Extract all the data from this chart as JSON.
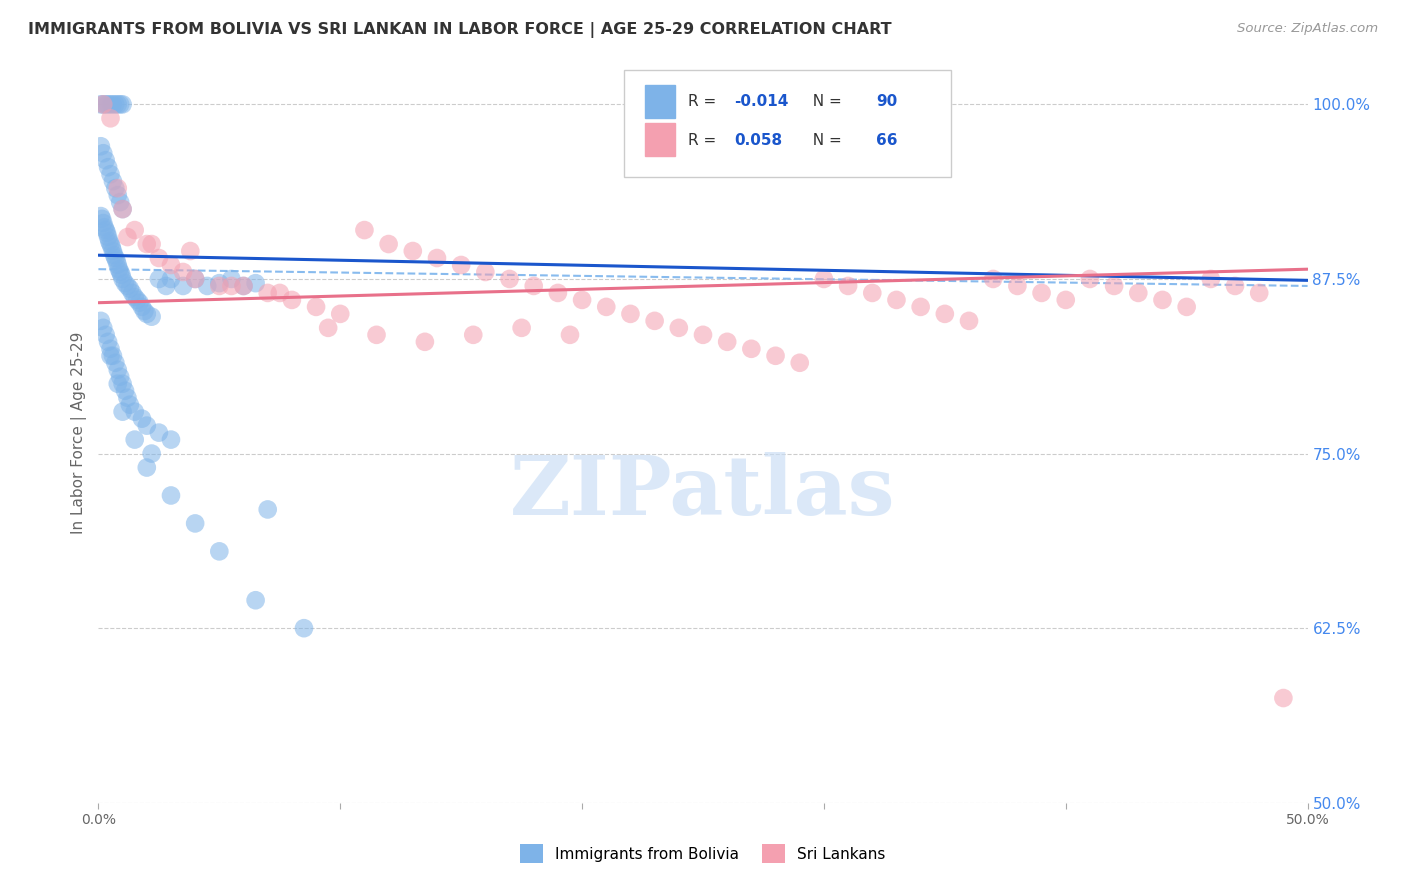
{
  "title": "IMMIGRANTS FROM BOLIVIA VS SRI LANKAN IN LABOR FORCE | AGE 25-29 CORRELATION CHART",
  "source": "Source: ZipAtlas.com",
  "ylabel": "In Labor Force | Age 25-29",
  "yticks": [
    50.0,
    62.5,
    75.0,
    87.5,
    100.0
  ],
  "ytick_labels": [
    "50.0%",
    "62.5%",
    "75.0%",
    "87.5%",
    "100.0%"
  ],
  "xlim": [
    0.0,
    50.0
  ],
  "ylim": [
    50.0,
    103.0
  ],
  "bolivia_R": -0.014,
  "bolivia_N": 90,
  "srilanka_R": 0.058,
  "srilanka_N": 66,
  "bolivia_color": "#7EB3E8",
  "srilanka_color": "#F4A0B0",
  "bolivia_line_color": "#1A56CC",
  "srilanka_line_color": "#E8708A",
  "bolivia_trend": [
    89.2,
    87.4
  ],
  "srilanka_trend": [
    85.8,
    88.2
  ],
  "dashed_trend": [
    88.2,
    87.0
  ],
  "bolivia_scatter_x": [
    0.1,
    0.2,
    0.3,
    0.4,
    0.5,
    0.6,
    0.7,
    0.8,
    0.9,
    1.0,
    0.1,
    0.2,
    0.3,
    0.4,
    0.5,
    0.6,
    0.7,
    0.8,
    0.9,
    1.0,
    0.1,
    0.15,
    0.2,
    0.25,
    0.3,
    0.35,
    0.4,
    0.45,
    0.5,
    0.55,
    0.6,
    0.65,
    0.7,
    0.75,
    0.8,
    0.85,
    0.9,
    0.95,
    1.0,
    1.1,
    1.2,
    1.3,
    1.4,
    1.5,
    1.6,
    1.7,
    1.8,
    1.9,
    2.0,
    2.2,
    2.5,
    2.8,
    3.0,
    3.5,
    4.0,
    4.5,
    5.0,
    5.5,
    6.0,
    6.5,
    0.1,
    0.2,
    0.3,
    0.4,
    0.5,
    0.6,
    0.7,
    0.8,
    0.9,
    1.0,
    1.1,
    1.2,
    1.3,
    1.5,
    1.8,
    2.0,
    2.5,
    3.0,
    7.0,
    2.2,
    0.5,
    0.8,
    1.0,
    1.5,
    2.0,
    3.0,
    4.0,
    5.0,
    6.5,
    8.5
  ],
  "bolivia_scatter_y": [
    100.0,
    100.0,
    100.0,
    100.0,
    100.0,
    100.0,
    100.0,
    100.0,
    100.0,
    100.0,
    97.0,
    96.5,
    96.0,
    95.5,
    95.0,
    94.5,
    94.0,
    93.5,
    93.0,
    92.5,
    92.0,
    91.8,
    91.5,
    91.2,
    91.0,
    90.8,
    90.5,
    90.2,
    90.0,
    89.8,
    89.5,
    89.2,
    89.0,
    88.8,
    88.5,
    88.2,
    88.0,
    87.8,
    87.5,
    87.2,
    87.0,
    86.8,
    86.5,
    86.2,
    86.0,
    85.8,
    85.5,
    85.2,
    85.0,
    84.8,
    87.5,
    87.0,
    87.5,
    87.0,
    87.5,
    87.0,
    87.2,
    87.5,
    87.0,
    87.2,
    84.5,
    84.0,
    83.5,
    83.0,
    82.5,
    82.0,
    81.5,
    81.0,
    80.5,
    80.0,
    79.5,
    79.0,
    78.5,
    78.0,
    77.5,
    77.0,
    76.5,
    76.0,
    71.0,
    75.0,
    82.0,
    80.0,
    78.0,
    76.0,
    74.0,
    72.0,
    70.0,
    68.0,
    64.5,
    62.5
  ],
  "srilanka_scatter_x": [
    0.2,
    0.5,
    0.8,
    1.0,
    1.5,
    2.0,
    2.5,
    3.0,
    3.5,
    4.0,
    5.0,
    6.0,
    7.0,
    8.0,
    9.0,
    10.0,
    11.0,
    12.0,
    13.0,
    14.0,
    15.0,
    16.0,
    17.0,
    18.0,
    19.0,
    20.0,
    21.0,
    22.0,
    23.0,
    24.0,
    25.0,
    26.0,
    27.0,
    28.0,
    29.0,
    30.0,
    31.0,
    32.0,
    33.0,
    34.0,
    35.0,
    36.0,
    37.0,
    38.0,
    39.0,
    40.0,
    41.0,
    42.0,
    43.0,
    44.0,
    45.0,
    46.0,
    47.0,
    48.0,
    49.0,
    1.2,
    2.2,
    3.8,
    5.5,
    7.5,
    9.5,
    11.5,
    13.5,
    15.5,
    17.5,
    19.5
  ],
  "srilanka_scatter_y": [
    100.0,
    99.0,
    94.0,
    92.5,
    91.0,
    90.0,
    89.0,
    88.5,
    88.0,
    87.5,
    87.0,
    87.0,
    86.5,
    86.0,
    85.5,
    85.0,
    91.0,
    90.0,
    89.5,
    89.0,
    88.5,
    88.0,
    87.5,
    87.0,
    86.5,
    86.0,
    85.5,
    85.0,
    84.5,
    84.0,
    83.5,
    83.0,
    82.5,
    82.0,
    81.5,
    87.5,
    87.0,
    86.5,
    86.0,
    85.5,
    85.0,
    84.5,
    87.5,
    87.0,
    86.5,
    86.0,
    87.5,
    87.0,
    86.5,
    86.0,
    85.5,
    87.5,
    87.0,
    86.5,
    57.5,
    90.5,
    90.0,
    89.5,
    87.0,
    86.5,
    84.0,
    83.5,
    83.0,
    83.5,
    84.0,
    83.5
  ],
  "watermark_text": "ZIPatlas",
  "background_color": "#FFFFFF",
  "grid_color": "#CCCCCC",
  "title_color": "#333333",
  "axis_label_color": "#666666",
  "right_tick_color": "#4488EE",
  "legend_text_color": "#333333",
  "dashed_color": "#88BBEE"
}
